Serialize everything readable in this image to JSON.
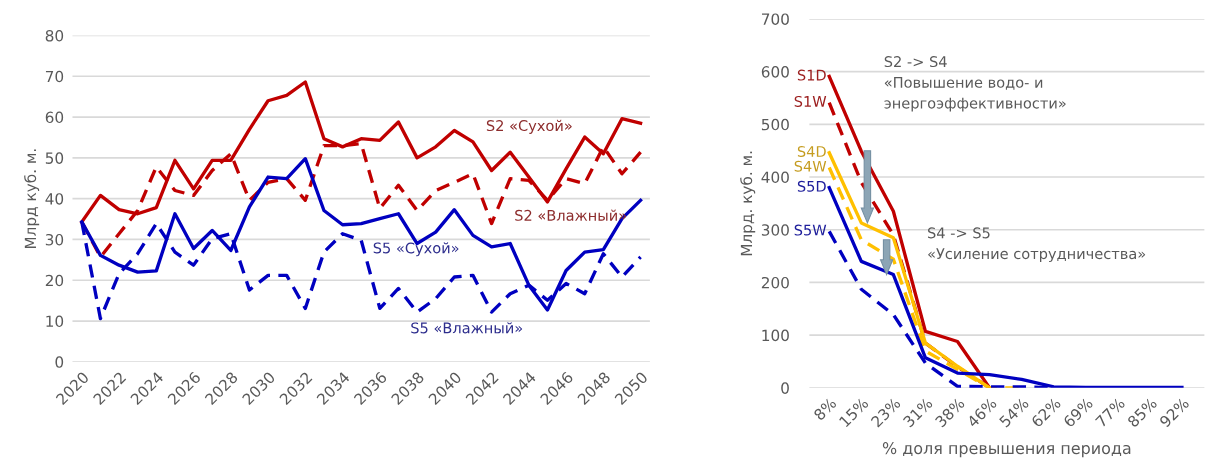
{
  "chart_data": [
    {
      "type": "line",
      "ylabel": "Млрд куб. м.",
      "x": [
        2020,
        2021,
        2022,
        2023,
        2024,
        2025,
        2026,
        2027,
        2028,
        2029,
        2030,
        2031,
        2032,
        2033,
        2034,
        2035,
        2036,
        2037,
        2038,
        2039,
        2040,
        2041,
        2042,
        2043,
        2044,
        2045,
        2046,
        2047,
        2048,
        2049,
        2050
      ],
      "xlim": [
        2019.5,
        2050.5
      ],
      "xticks": [
        2020,
        2022,
        2024,
        2026,
        2028,
        2030,
        2032,
        2034,
        2036,
        2038,
        2040,
        2042,
        2044,
        2046,
        2048,
        2050
      ],
      "ylim": [
        0,
        80
      ],
      "yticks": [
        0,
        10,
        20,
        30,
        40,
        50,
        60,
        70,
        80
      ],
      "grid": "y",
      "legend": false,
      "series": [
        {
          "color": "#c00000",
          "line_style": "solid",
          "values": [
            34.3,
            40.8,
            37.3,
            36.3,
            37.8,
            49.4,
            42.4,
            49.4,
            49.4,
            57,
            64,
            65.3,
            68.6,
            54.7,
            52.7,
            54.7,
            54.3,
            58.8,
            50,
            52.7,
            56.7,
            53.9,
            46.9,
            51.4,
            45.3,
            39.2,
            47.3,
            55.1,
            51,
            59.6,
            58.5
          ]
        },
        {
          "color": "#c00000",
          "line_style": "dashed",
          "values": [
            34.3,
            25.7,
            31.4,
            37.1,
            47.8,
            42,
            40.8,
            46.9,
            51,
            39.6,
            44,
            44.9,
            39.6,
            53,
            53,
            53.5,
            37.6,
            43.3,
            37.1,
            42,
            44,
            46.1,
            33.9,
            44.9,
            44.5,
            39.6,
            44.9,
            43.7,
            52.7,
            46.1,
            51.4
          ]
        },
        {
          "color": "#0000c0",
          "line_style": "solid",
          "values": [
            34.3,
            26.1,
            23.7,
            22,
            22.3,
            36.3,
            27.8,
            32.2,
            27.3,
            38,
            45.3,
            44.9,
            49.8,
            37.1,
            33.6,
            33.9,
            35.1,
            36.3,
            29,
            31.8,
            37.3,
            31,
            28.2,
            29,
            18.8,
            12.7,
            22.4,
            26.9,
            27.5,
            35.1,
            39.6
          ]
        },
        {
          "color": "#0000c0",
          "line_style": "dashed",
          "values": [
            34.3,
            10.6,
            21.6,
            26.5,
            33.9,
            26.9,
            23.7,
            30.2,
            31.4,
            17.6,
            21.2,
            21.2,
            13.1,
            26.9,
            31.4,
            29.8,
            13.1,
            18,
            12.2,
            15.5,
            20.8,
            21.2,
            12.2,
            16.7,
            18.8,
            15.1,
            19.2,
            16.7,
            26.5,
            20.8,
            25.7
          ]
        }
      ],
      "annotations": [
        "S2 «Сухой»",
        "S2 «Влажный»",
        "S5 «Сухой»",
        "S5 «Влажный»"
      ]
    },
    {
      "type": "line",
      "ylabel": "Млрд. куб. м.",
      "xlabel": "% доля превышения периода",
      "categories": [
        "8%",
        "15%",
        "23%",
        "31%",
        "38%",
        "46%",
        "54%",
        "62%",
        "69%",
        "77%",
        "85%",
        "92%"
      ],
      "ylim": [
        0,
        700
      ],
      "yticks": [
        0,
        100,
        200,
        300,
        400,
        500,
        600,
        700
      ],
      "grid": "y",
      "legend": false,
      "series": [
        {
          "name": "S1D",
          "color": "#c00000",
          "line_style": "solid",
          "values": [
            591,
            449,
            335,
            107,
            88,
            0,
            null,
            null,
            null,
            null,
            null,
            null
          ]
        },
        {
          "name": "S1W",
          "color": "#c00000",
          "line_style": "dashed",
          "values": [
            541,
            390,
            290,
            85,
            40,
            0,
            null,
            null,
            null,
            null,
            null,
            null
          ]
        },
        {
          "name": "S4D",
          "color": "#ffc000",
          "line_style": "solid",
          "values": [
            446,
            313,
            285,
            85,
            41,
            0,
            null,
            null,
            null,
            null,
            null,
            null
          ]
        },
        {
          "name": "S4W",
          "color": "#ffc000",
          "line_style": "dashed",
          "values": [
            418,
            281,
            244,
            70,
            35,
            0,
            0,
            null,
            null,
            null,
            null,
            null
          ]
        },
        {
          "name": "S5D",
          "color": "#0000c0",
          "line_style": "solid",
          "values": [
            380,
            240,
            215,
            57,
            28,
            25,
            16,
            2,
            1,
            1,
            1,
            1
          ]
        },
        {
          "name": "S5W",
          "color": "#0000c0",
          "line_style": "dashed",
          "values": [
            297,
            187,
            139,
            47,
            3,
            2,
            2,
            0,
            null,
            null,
            null,
            null
          ]
        }
      ],
      "annotations": [
        "S2 -> S4\n«Повышение водо- и\nэнергоэффективности»",
        "S4 -> S5\n«Усиление сотрудничества»"
      ]
    }
  ]
}
